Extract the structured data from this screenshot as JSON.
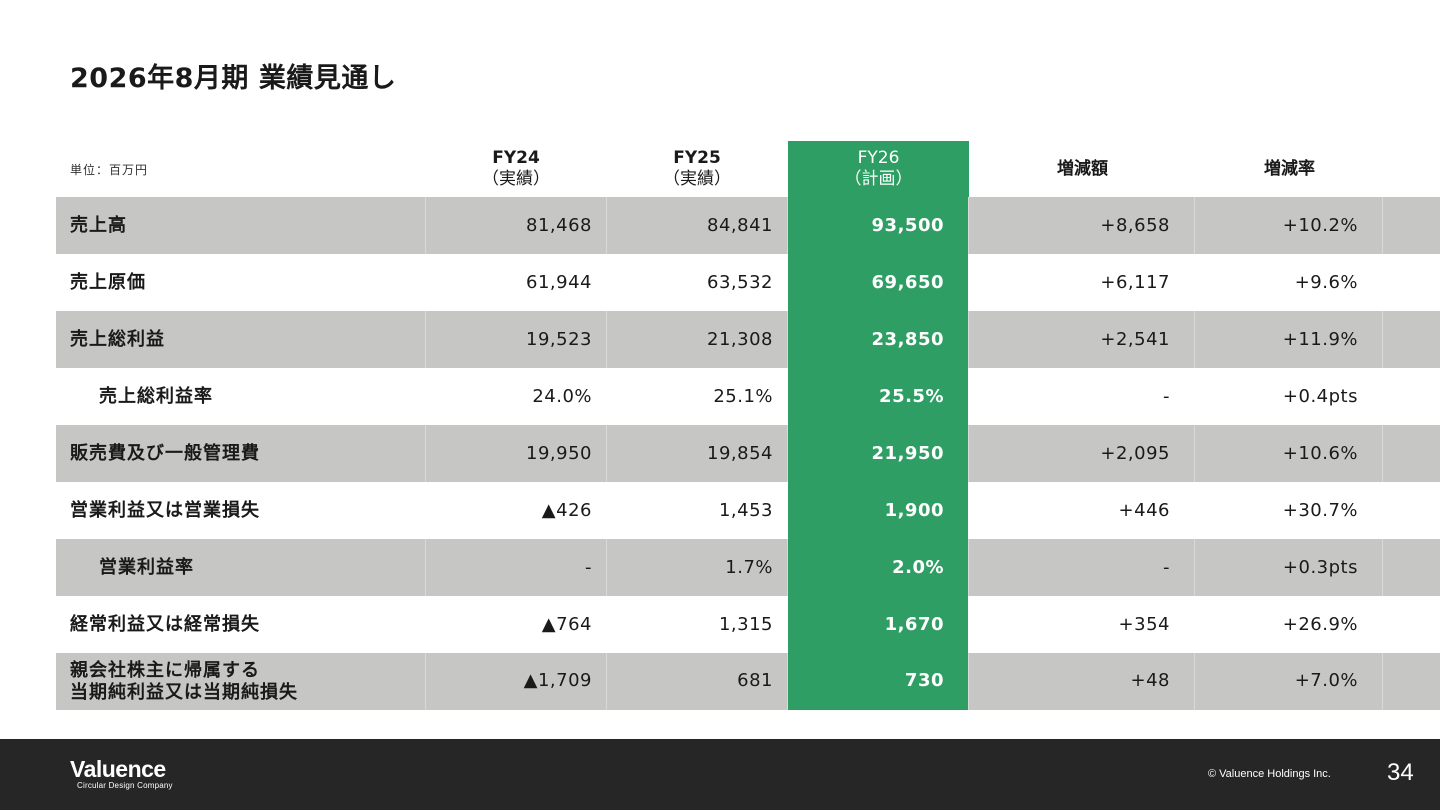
{
  "title": "2026年8月期 業績見通し",
  "unit_label": "単位：百万円",
  "columns": {
    "fy24": {
      "fy": "FY24",
      "sub": "（実績）"
    },
    "fy25": {
      "fy": "FY25",
      "sub": "（実績）"
    },
    "fy26": {
      "fy": "FY26",
      "sub": "（計画）"
    },
    "diff": "増減額",
    "rate": "増減率"
  },
  "rows": [
    {
      "label": "売上高",
      "fy24": "81,468",
      "fy25": "84,841",
      "fy26": "93,500",
      "diff": "+8,658",
      "rate": "+10.2%"
    },
    {
      "label": "売上原価",
      "fy24": "61,944",
      "fy25": "63,532",
      "fy26": "69,650",
      "diff": "+6,117",
      "rate": "+9.6%"
    },
    {
      "label": "売上総利益",
      "fy24": "19,523",
      "fy25": "21,308",
      "fy26": "23,850",
      "diff": "+2,541",
      "rate": "+11.9%"
    },
    {
      "label": "売上総利益率",
      "fy24": "24.0%",
      "fy25": "25.1%",
      "fy26": "25.5%",
      "diff": "-",
      "rate": "+0.4pts"
    },
    {
      "label": "販売費及び一般管理費",
      "fy24": "19,950",
      "fy25": "19,854",
      "fy26": "21,950",
      "diff": "+2,095",
      "rate": "+10.6%"
    },
    {
      "label": "営業利益又は営業損失",
      "fy24": "▲426",
      "fy25": "1,453",
      "fy26": "1,900",
      "diff": "+446",
      "rate": "+30.7%"
    },
    {
      "label": "営業利益率",
      "fy24": "-",
      "fy25": "1.7%",
      "fy26": "2.0%",
      "diff": "-",
      "rate": "+0.3pts"
    },
    {
      "label": "経常利益又は経常損失",
      "fy24": "▲764",
      "fy25": "1,315",
      "fy26": "1,670",
      "diff": "+354",
      "rate": "+26.9%"
    },
    {
      "label_line1": "親会社株主に帰属する",
      "label_line2": "当期純利益又は当期純損失",
      "fy24": "▲1,709",
      "fy25": "681",
      "fy26": "730",
      "diff": "+48",
      "rate": "+7.0%"
    }
  ],
  "footer": {
    "logo_main": "Valuence",
    "logo_sub": "Circular Design Company",
    "copyright": "© Valuence Holdings Inc.",
    "page_number": "34"
  },
  "colors": {
    "accent_green": "#2f9e64",
    "row_shade": "#c6c7c5",
    "footer_bg": "#262626"
  }
}
